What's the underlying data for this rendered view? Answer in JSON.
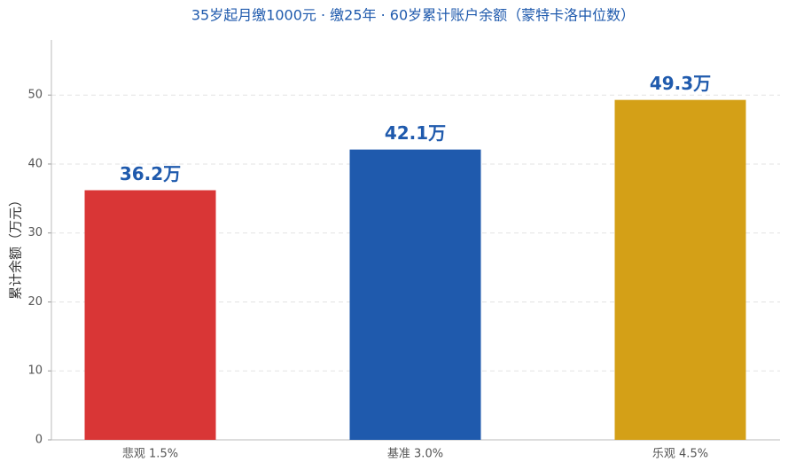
{
  "chart_data": {
    "type": "bar",
    "title": "35岁起月缴1000元 · 缴25年 · 60岁累计账户余额（蒙特卡洛中位数）",
    "y_label": "累计余额（万元）",
    "categories": [
      "悲观 1.5%",
      "基准 3.0%",
      "乐观 4.5%"
    ],
    "values": [
      36.2,
      42.1,
      49.3
    ],
    "value_labels": [
      "36.2万",
      "42.1万",
      "49.3万"
    ],
    "colors": [
      "#d93636",
      "#1f5aad",
      "#d4a017"
    ],
    "ylim": [
      0,
      58
    ],
    "yticks": [
      0,
      10,
      20,
      30,
      40,
      50
    ],
    "grid": true
  }
}
